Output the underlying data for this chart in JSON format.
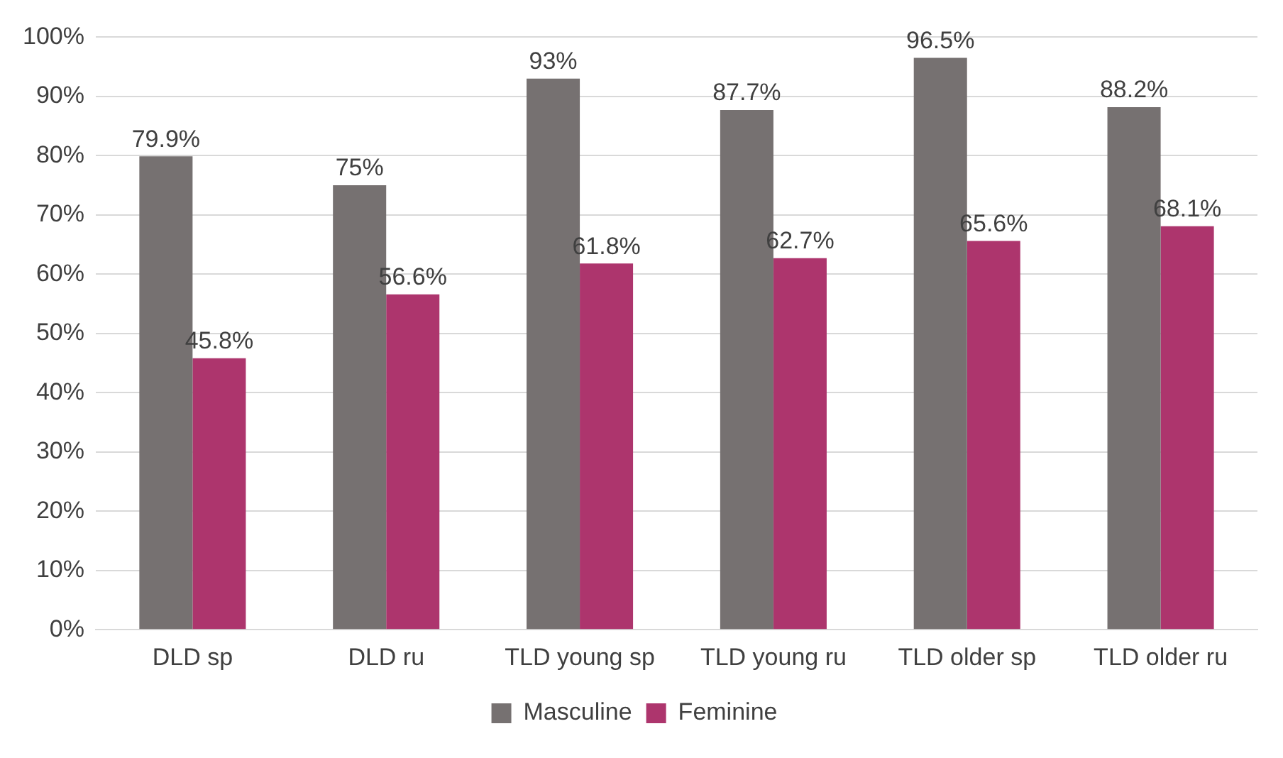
{
  "chart_data": {
    "type": "bar",
    "categories": [
      "DLD sp",
      "DLD ru",
      "TLD young sp",
      "TLD young ru",
      "TLD older sp",
      "TLD older ru"
    ],
    "series": [
      {
        "name": "Masculine",
        "color": "#767171",
        "values": [
          79.9,
          75,
          93,
          87.7,
          96.5,
          88.2
        ],
        "value_labels": [
          "79.9%",
          "75%",
          "93%",
          "87.7%",
          "96.5%",
          "88.2%"
        ]
      },
      {
        "name": "Feminine",
        "color": "#ad356d",
        "values": [
          45.8,
          56.6,
          61.8,
          62.7,
          65.6,
          68.1
        ],
        "value_labels": [
          "45.8%",
          "56.6%",
          "61.8%",
          "62.7%",
          "65.6%",
          "68.1%"
        ]
      }
    ],
    "ylim": [
      0,
      100
    ],
    "yticks": [
      {
        "value": 0,
        "label": "0%"
      },
      {
        "value": 10,
        "label": "10%"
      },
      {
        "value": 20,
        "label": "20%"
      },
      {
        "value": 30,
        "label": "30%"
      },
      {
        "value": 40,
        "label": "40%"
      },
      {
        "value": 50,
        "label": "50%"
      },
      {
        "value": 60,
        "label": "60%"
      },
      {
        "value": 70,
        "label": "70%"
      },
      {
        "value": 80,
        "label": "80%"
      },
      {
        "value": 90,
        "label": "90%"
      },
      {
        "value": 100,
        "label": "100%"
      }
    ],
    "grid": "y",
    "legend": "bottom"
  }
}
